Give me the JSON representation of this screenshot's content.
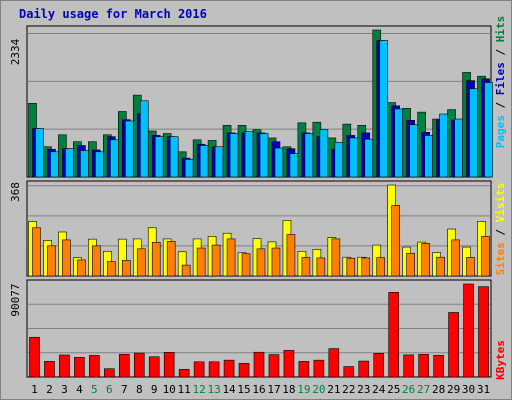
{
  "title": "Daily usage for March 2016",
  "colors": {
    "hits": "#008040",
    "files": "#0000c0",
    "pages": "#00c0ff",
    "visits": "#ffff00",
    "sites": "#ff8000",
    "kbytes": "#ff0000",
    "weekend_label": "#008040",
    "weekday_label": "#000000"
  },
  "chart_data": [
    {
      "type": "bar",
      "panel": "top",
      "ymax_label": "2334",
      "ylim": [
        0,
        2334
      ],
      "right_label": [
        "Pages",
        "Files",
        "Hits"
      ],
      "categories": [
        "1",
        "2",
        "3",
        "4",
        "5",
        "6",
        "7",
        "8",
        "9",
        "10",
        "11",
        "12",
        "13",
        "14",
        "15",
        "16",
        "17",
        "18",
        "19",
        "20",
        "21",
        "22",
        "23",
        "24",
        "25",
        "26",
        "27",
        "28",
        "29",
        "30",
        "31"
      ],
      "weekend": [
        "5",
        "6",
        "12",
        "13",
        "19",
        "20",
        "26",
        "27"
      ],
      "series": [
        {
          "name": "Hits",
          "values": [
            1170,
            480,
            670,
            560,
            560,
            670,
            1040,
            1300,
            730,
            690,
            400,
            590,
            580,
            820,
            820,
            750,
            620,
            480,
            860,
            870,
            620,
            840,
            820,
            2334,
            1180,
            1090,
            1030,
            920,
            1070,
            1660,
            1600
          ]
        },
        {
          "name": "Files",
          "values": [
            770,
            440,
            450,
            500,
            430,
            640,
            910,
            1010,
            660,
            640,
            300,
            520,
            480,
            700,
            700,
            700,
            560,
            450,
            700,
            640,
            440,
            660,
            700,
            2167,
            1130,
            900,
            710,
            910,
            900,
            1530,
            1560
          ]
        },
        {
          "name": "Pages",
          "values": [
            770,
            400,
            450,
            420,
            400,
            590,
            890,
            1210,
            640,
            640,
            280,
            500,
            480,
            690,
            720,
            690,
            460,
            370,
            690,
            750,
            550,
            620,
            600,
            2167,
            1080,
            830,
            660,
            1000,
            920,
            1400,
            1500
          ]
        }
      ]
    },
    {
      "type": "bar",
      "panel": "middle",
      "ymax_label": "368",
      "ylim": [
        0,
        368
      ],
      "right_label": [
        "Sites",
        "Visits"
      ],
      "categories": [
        "1",
        "2",
        "3",
        "4",
        "5",
        "6",
        "7",
        "8",
        "9",
        "10",
        "11",
        "12",
        "13",
        "14",
        "15",
        "16",
        "17",
        "18",
        "19",
        "20",
        "21",
        "22",
        "23",
        "24",
        "25",
        "26",
        "27",
        "28",
        "29",
        "30",
        "31"
      ],
      "series": [
        {
          "name": "Visits",
          "values": [
            221,
            144,
            178,
            75,
            149,
            100,
            149,
            150,
            195,
            150,
            98,
            150,
            160,
            173,
            94,
            152,
            138,
            225,
            100,
            108,
            155,
            76,
            76,
            125,
            368,
            117,
            137,
            95,
            190,
            117,
            221
          ]
        },
        {
          "name": "Sites",
          "values": [
            195,
            122,
            146,
            65,
            122,
            58,
            63,
            110,
            136,
            140,
            44,
            113,
            125,
            150,
            90,
            110,
            113,
            168,
            75,
            73,
            150,
            72,
            73,
            74,
            285,
            92,
            132,
            76,
            146,
            75,
            160
          ]
        }
      ]
    },
    {
      "type": "bar",
      "panel": "bottom",
      "ymax_label": "90077",
      "ylim": [
        0,
        90077
      ],
      "right_label": [
        "KBytes"
      ],
      "categories": [
        "1",
        "2",
        "3",
        "4",
        "5",
        "6",
        "7",
        "8",
        "9",
        "10",
        "11",
        "12",
        "13",
        "14",
        "15",
        "16",
        "17",
        "18",
        "19",
        "20",
        "21",
        "22",
        "23",
        "24",
        "25",
        "26",
        "27",
        "28",
        "29",
        "30",
        "31"
      ],
      "series": [
        {
          "name": "KBytes",
          "values": [
            38500,
            15200,
            21300,
            19000,
            20900,
            8000,
            22000,
            23200,
            19600,
            23900,
            7400,
            14700,
            14700,
            16300,
            13200,
            24000,
            21700,
            25800,
            15100,
            16300,
            27500,
            10100,
            15400,
            22900,
            82000,
            21400,
            22000,
            21000,
            62500,
            90077,
            87500
          ]
        }
      ]
    }
  ]
}
